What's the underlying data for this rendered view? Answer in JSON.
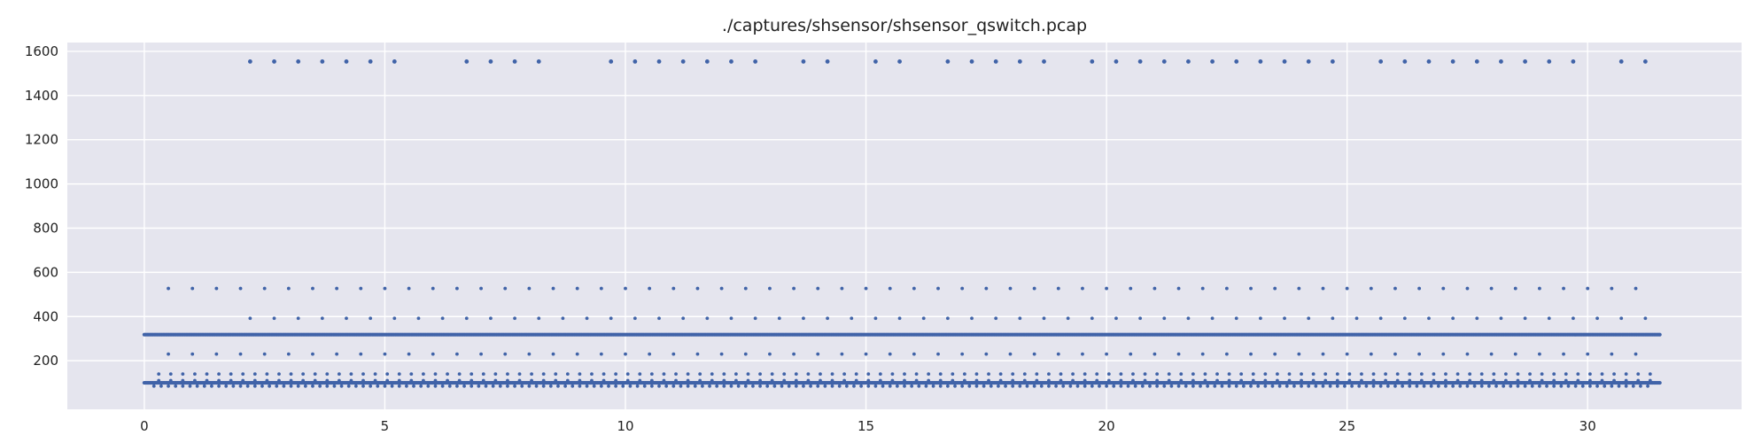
{
  "chart_data": {
    "type": "scatter",
    "title": "./captures/shsensor/shsensor_qswitch.pcap",
    "xlabel": "",
    "ylabel": "",
    "xlim": [
      -1.6,
      33.2
    ],
    "ylim": [
      -20,
      1640
    ],
    "x_ticks": [
      0,
      5,
      10,
      15,
      20,
      25,
      30
    ],
    "y_ticks": [
      200,
      400,
      600,
      800,
      1000,
      1200,
      1400,
      1600
    ],
    "grid": true,
    "legend": "none",
    "colors": {
      "background": "#e5e5ee",
      "grid": "#ffffff",
      "marker": "#4063a8"
    },
    "series": [
      {
        "values_y": 1554,
        "x": [
          2.2,
          2.7,
          3.2,
          3.7,
          4.2,
          4.7,
          5.2,
          6.7,
          7.2,
          7.7,
          8.2,
          9.7,
          10.2,
          10.7,
          11.2,
          11.7,
          12.2,
          12.7,
          13.7,
          14.2,
          15.2,
          15.7,
          16.7,
          17.2,
          17.7,
          18.2,
          18.7,
          19.7,
          20.2,
          20.7,
          21.2,
          21.7,
          22.2,
          22.7,
          23.2,
          23.7,
          24.2,
          24.7,
          25.7,
          26.2,
          26.7,
          27.2,
          27.7,
          28.2,
          28.7,
          29.2,
          29.7,
          30.7,
          31.2
        ]
      },
      {
        "level_y": 527,
        "x_start": 0.5,
        "x_end": 31.2,
        "step": 0.5
      },
      {
        "level_y": 392,
        "x_start": 2.2,
        "x_end": 31.2,
        "step": 0.5
      },
      {
        "level_y": 318,
        "x_start": 0.0,
        "x_end": 31.5,
        "step": 0.03
      },
      {
        "level_y": 230,
        "x_start": 0.5,
        "x_end": 31.2,
        "step": 0.5
      },
      {
        "level_y": 140,
        "x_start": 0.3,
        "x_end": 31.3,
        "step": 0.25
      },
      {
        "level_y": 110,
        "x_start": 0.3,
        "x_end": 31.3,
        "step": 0.25
      },
      {
        "level_y": 100,
        "x_start": 0.0,
        "x_end": 31.5,
        "step": 0.03
      },
      {
        "level_y": 85,
        "x_start": 0.2,
        "x_end": 31.3,
        "step": 0.15
      }
    ]
  }
}
